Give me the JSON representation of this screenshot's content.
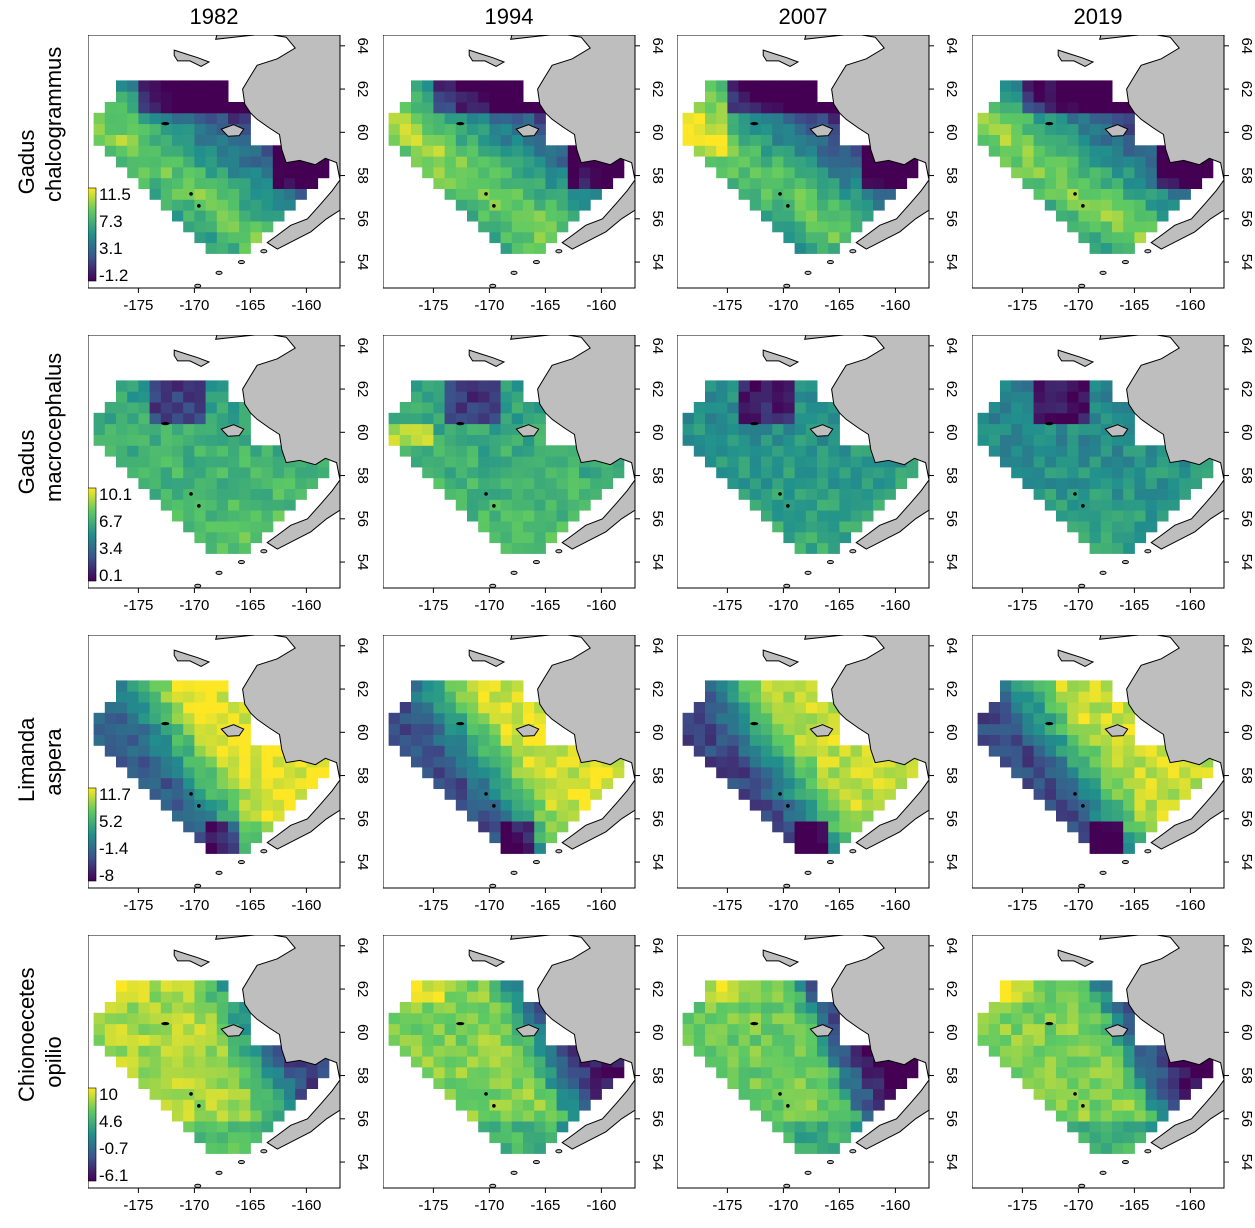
{
  "years": [
    "1982",
    "1994",
    "2007",
    "2019"
  ],
  "species": [
    {
      "line1": "Gadus",
      "line2": "chalcogrammus",
      "legend": [
        "11.5",
        "7.3",
        "3.1",
        "-1.2"
      ]
    },
    {
      "line1": "Gadus",
      "line2": "macrocephalus",
      "legend": [
        "10.1",
        "6.7",
        "3.4",
        "0.1"
      ]
    },
    {
      "line1": "Limanda",
      "line2": "aspera",
      "legend": [
        "11.7",
        "5.2",
        "-1.4",
        "-8"
      ]
    },
    {
      "line1": "Chionoecetes",
      "line2": "opilio",
      "legend": [
        "10",
        "4.6",
        "-0.7",
        "-6.1"
      ]
    }
  ],
  "axes": {
    "x_ticks": [
      "-175",
      "-170",
      "-165",
      "-160"
    ],
    "y_ticks": [
      "64",
      "62",
      "60",
      "58",
      "56",
      "54"
    ],
    "x_range": [
      -179.5,
      -157
    ],
    "y_range": [
      52.8,
      64.5
    ]
  },
  "colors": {
    "land": "#bebebe",
    "outline": "#000000",
    "viridis": [
      "#440154",
      "#3b528b",
      "#21908d",
      "#5dc963",
      "#fde725"
    ]
  }
}
